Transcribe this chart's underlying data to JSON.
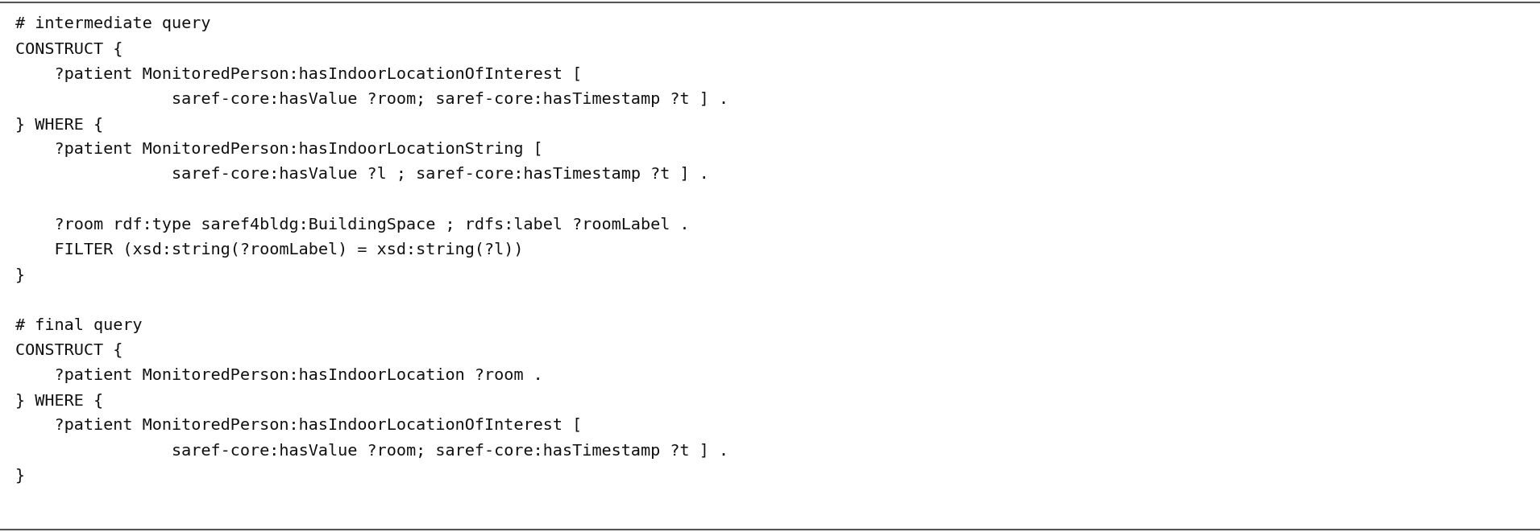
{
  "background_color": "#ffffff",
  "border_color": "#555555",
  "text_color": "#111111",
  "font_family": "monospace",
  "font_size": 14.5,
  "figsize": [
    19.11,
    6.61
  ],
  "dpi": 100,
  "lines": [
    "# intermediate query",
    "CONSTRUCT {",
    "    ?patient MonitoredPerson:hasIndoorLocationOfInterest [",
    "                saref-core:hasValue ?room; saref-core:hasTimestamp ?t ] .",
    "} WHERE {",
    "    ?patient MonitoredPerson:hasIndoorLocationString [",
    "                saref-core:hasValue ?l ; saref-core:hasTimestamp ?t ] .",
    "",
    "    ?room rdf:type saref4bldg:BuildingSpace ; rdfs:label ?roomLabel .",
    "    FILTER (xsd:string(?roomLabel) = xsd:string(?l))",
    "}",
    "",
    "# final query",
    "CONSTRUCT {",
    "    ?patient MonitoredPerson:hasIndoorLocation ?room .",
    "} WHERE {",
    "    ?patient MonitoredPerson:hasIndoorLocationOfInterest [",
    "                saref-core:hasValue ?room; saref-core:hasTimestamp ?t ] .",
    "}"
  ]
}
